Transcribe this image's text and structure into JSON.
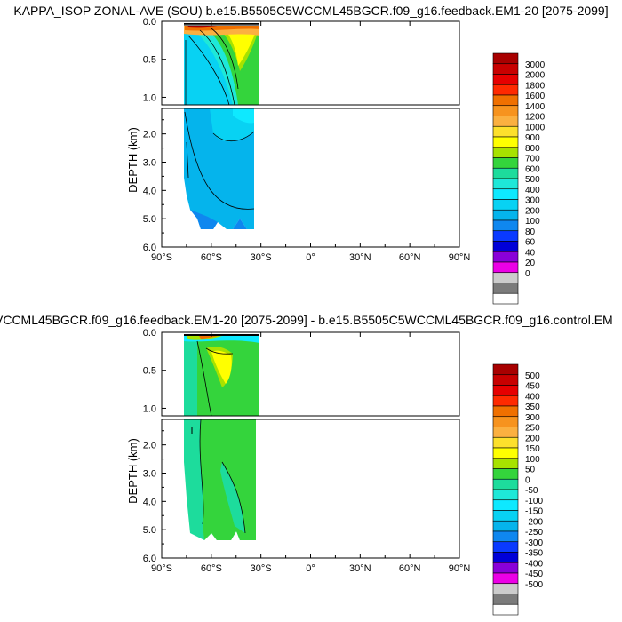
{
  "panels": [
    {
      "title": "KAPPA_ISOP ZONAL-AVE (SOU) b.e15.B5505C5WCCML45BGCR.f09_g16.feedback.EM1-20 [2075-2099]",
      "ylabel": "DEPTH (km)",
      "upper_ticks": [
        "0.0",
        "0.5",
        "1.0"
      ],
      "lower_ticks": [
        "2.0",
        "3.0",
        "4.0",
        "5.0",
        "6.0"
      ],
      "x_ticks": [
        "90°S",
        "60°S",
        "30°S",
        "0°",
        "30°N",
        "60°N",
        "90°N"
      ],
      "legend_labels": [
        "3000",
        "2000",
        "1800",
        "1600",
        "1400",
        "1200",
        "1000",
        "900",
        "800",
        "700",
        "600",
        "500",
        "400",
        "300",
        "200",
        "100",
        "80",
        "60",
        "40",
        "20",
        "0"
      ],
      "legend_colors": [
        "#a80000",
        "#c80000",
        "#e60000",
        "#ff2a00",
        "#f07000",
        "#f7931e",
        "#fbb040",
        "#fde02c",
        "#ffff00",
        "#a7e200",
        "#34d43c",
        "#1ddc9c",
        "#1ee8d8",
        "#0ee9ff",
        "#08d2f3",
        "#05b4ec",
        "#0f87ef",
        "#0a3aff",
        "#0000d8",
        "#8a00d8",
        "#ec00e6",
        "#cccccc",
        "#7b7b7b",
        "#ffffff"
      ]
    },
    {
      "title": "VCCML45BGCR.f09_g16.feedback.EM1-20 [2075-2099] - b.e15.B5505C5WCCML45BGCR.f09_g16.control.EM",
      "ylabel": "DEPTH (km)",
      "upper_ticks": [
        "0.0",
        "0.5",
        "1.0"
      ],
      "lower_ticks": [
        "2.0",
        "3.0",
        "4.0",
        "5.0",
        "6.0"
      ],
      "x_ticks": [
        "90°S",
        "60°S",
        "30°S",
        "0°",
        "30°N",
        "60°N",
        "90°N"
      ],
      "legend_labels": [
        "500",
        "450",
        "400",
        "350",
        "300",
        "250",
        "200",
        "150",
        "100",
        "50",
        "0",
        "-50",
        "-100",
        "-150",
        "-200",
        "-250",
        "-300",
        "-350",
        "-400",
        "-450",
        "-500"
      ],
      "legend_colors": [
        "#a80000",
        "#c80000",
        "#e60000",
        "#ff2a00",
        "#f07000",
        "#f7931e",
        "#fbb040",
        "#fde02c",
        "#ffff00",
        "#a7e200",
        "#34d43c",
        "#1ddc9c",
        "#1ee8d8",
        "#0ee9ff",
        "#08d2f3",
        "#05b4ec",
        "#0f87ef",
        "#0a3aff",
        "#0000d8",
        "#8a00d8",
        "#ec00e6",
        "#cccccc",
        "#7b7b7b",
        "#ffffff"
      ]
    }
  ],
  "chart_data": [
    {
      "type": "heatmap",
      "title": "KAPPA_ISOP ZONAL-AVE (SOU) b.e15.B5505C5WCCML45BGCR.f09_g16.feedback.EM1-20 [2075-2099]",
      "xlabel": "",
      "ylabel": "DEPTH (km)",
      "xlim": [
        -90,
        90
      ],
      "ylim_upper_km": [
        0,
        1.1
      ],
      "ylim_lower_km": [
        1.1,
        6.0
      ],
      "data_extent_lat": [
        -78,
        -34
      ],
      "contour_levels": [
        0,
        20,
        40,
        60,
        80,
        100,
        200,
        300,
        400,
        500,
        600,
        700,
        800,
        900,
        1000,
        1200,
        1400,
        1600,
        1800,
        2000,
        3000
      ],
      "legend_placement": "right"
    },
    {
      "type": "heatmap",
      "title": "VCCML45BGCR.f09_g16.feedback.EM1-20 [2075-2099] - b.e15.B5505C5WCCML45BGCR.f09_g16.control.EM",
      "xlabel": "",
      "ylabel": "DEPTH (km)",
      "xlim": [
        -90,
        90
      ],
      "ylim_upper_km": [
        0,
        1.1
      ],
      "ylim_lower_km": [
        1.1,
        6.0
      ],
      "data_extent_lat": [
        -78,
        -34
      ],
      "contour_levels": [
        -500,
        -450,
        -400,
        -350,
        -300,
        -250,
        -200,
        -150,
        -100,
        -50,
        0,
        50,
        100,
        150,
        200,
        250,
        300,
        350,
        400,
        450,
        500
      ],
      "legend_placement": "right"
    }
  ]
}
